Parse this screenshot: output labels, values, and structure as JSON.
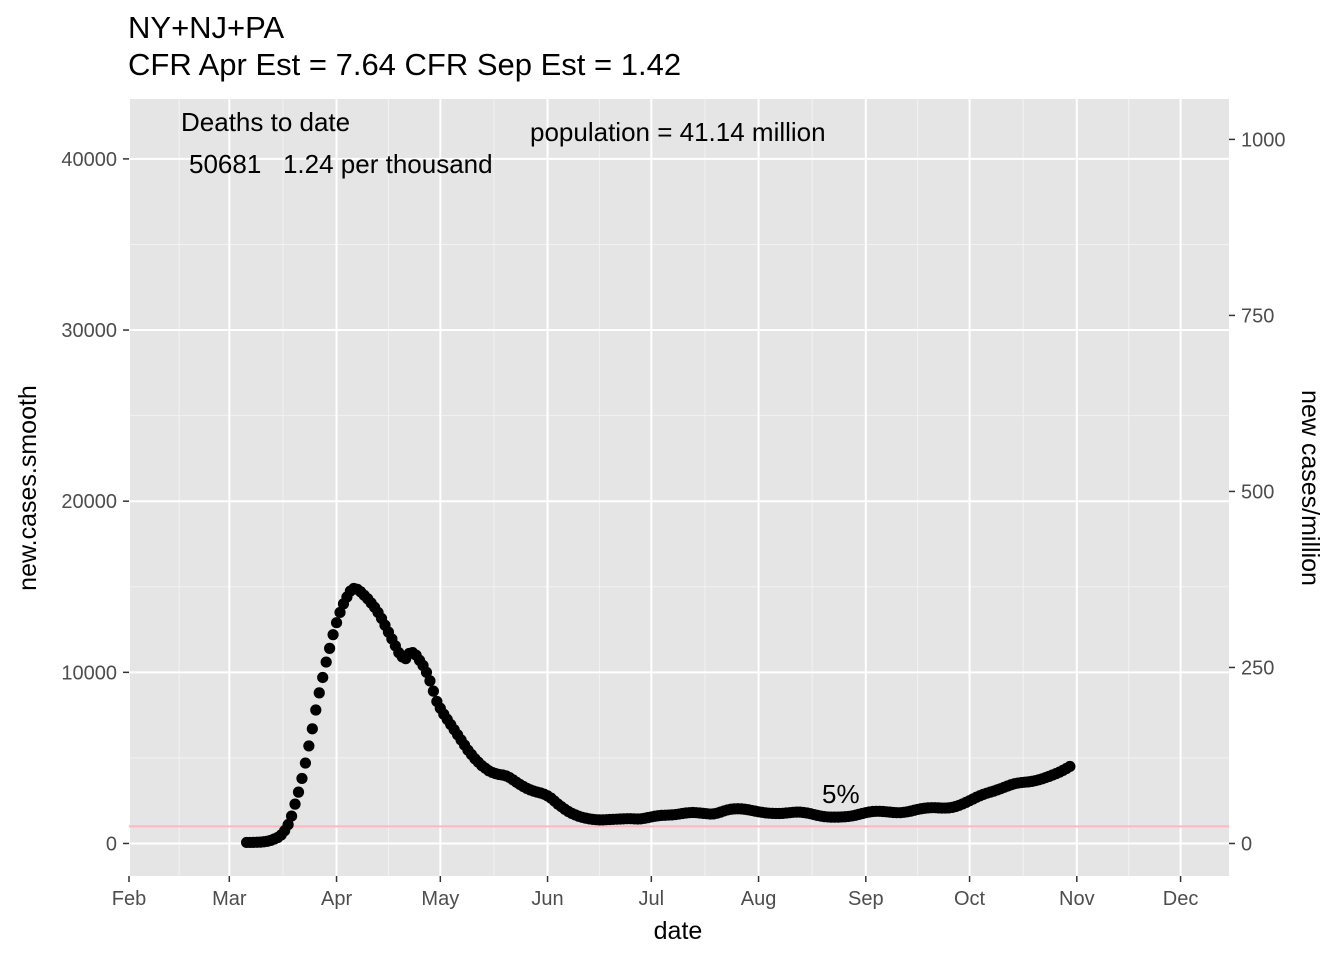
{
  "title": "NY+NJ+PA",
  "subtitle": "CFR Apr Est = 7.64   CFR Sep Est = 1.42",
  "chart_data": {
    "type": "scatter",
    "xlabel": "date",
    "ylabel": "new.cases.smooth",
    "y2label": "new cases/million",
    "x_ticks": [
      "Feb",
      "Mar",
      "Apr",
      "May",
      "Jun",
      "Jul",
      "Aug",
      "Sep",
      "Oct",
      "Nov",
      "Dec"
    ],
    "x_tick_dates": [
      "2020-02-01",
      "2020-03-01",
      "2020-04-01",
      "2020-05-01",
      "2020-06-01",
      "2020-07-01",
      "2020-08-01",
      "2020-09-01",
      "2020-10-01",
      "2020-11-01",
      "2020-12-01"
    ],
    "xlim": [
      "2020-02-01",
      "2020-12-15"
    ],
    "y_ticks": [
      "0",
      "10000",
      "20000",
      "30000",
      "40000"
    ],
    "ylim": [
      -1900,
      43500
    ],
    "y2_ticks": [
      "0",
      "250",
      "500",
      "750",
      "1000"
    ],
    "y2_scale_per_million": 41.14,
    "reference_line": {
      "y": 1000,
      "color": "#ffb6c1"
    },
    "grid": true,
    "background": "#e5e5e5",
    "point_color": "#000000",
    "annotations": {
      "deaths_label": "Deaths to date",
      "deaths_line": "50681   1.24 per thousand",
      "population": "population = 41.14 million",
      "pct_label": "5%"
    },
    "series": [
      {
        "x_start": "2020-03-06",
        "y": [
          60,
          62,
          65,
          70,
          80,
          100,
          130,
          180,
          260,
          350,
          500,
          750,
          1100,
          1600,
          2300,
          3000,
          3800,
          4700,
          5700,
          6700,
          7800,
          8800,
          9700,
          10600,
          11400,
          12200,
          12900,
          13500,
          14000,
          14400,
          14750,
          14900,
          14850,
          14700,
          14500,
          14300,
          14050,
          13800,
          13500,
          13150,
          12750,
          12350,
          11950,
          11550,
          11150,
          10900,
          10800,
          11100,
          11150,
          11000,
          10700,
          10400,
          10000,
          9500,
          8900,
          8300,
          7900,
          7550,
          7250,
          6950,
          6650,
          6350,
          6050,
          5750,
          5450,
          5200,
          4950,
          4750,
          4550,
          4400,
          4250,
          4150,
          4080,
          4030,
          4000,
          3950,
          3850,
          3720,
          3580,
          3450,
          3330,
          3220,
          3130,
          3060,
          3000,
          2950,
          2880,
          2780,
          2650,
          2480,
          2300,
          2150,
          2000,
          1870,
          1760,
          1670,
          1590,
          1530,
          1480,
          1440,
          1410,
          1390,
          1380,
          1380,
          1390,
          1400,
          1410,
          1420,
          1430,
          1440,
          1450,
          1450,
          1440,
          1430,
          1440,
          1470,
          1510,
          1550,
          1590,
          1620,
          1640,
          1650,
          1660,
          1670,
          1690,
          1720,
          1750,
          1780,
          1800,
          1810,
          1800,
          1780,
          1760,
          1740,
          1720,
          1730,
          1770,
          1830,
          1900,
          1960,
          2000,
          2020,
          2030,
          2020,
          2000,
          1970,
          1930,
          1890,
          1850,
          1820,
          1790,
          1770,
          1760,
          1750,
          1750,
          1760,
          1780,
          1800,
          1820,
          1830,
          1830,
          1810,
          1780,
          1740,
          1690,
          1640,
          1600,
          1570,
          1550,
          1540,
          1540,
          1540,
          1550,
          1560,
          1580,
          1610,
          1650,
          1700,
          1750,
          1800,
          1840,
          1870,
          1880,
          1880,
          1870,
          1850,
          1830,
          1810,
          1800,
          1800,
          1820,
          1850,
          1890,
          1940,
          1990,
          2030,
          2060,
          2080,
          2090,
          2090,
          2080,
          2070,
          2070,
          2080,
          2110,
          2160,
          2230,
          2310,
          2400,
          2500,
          2600,
          2700,
          2790,
          2870,
          2940,
          3000,
          3060,
          3130,
          3200,
          3280,
          3360,
          3430,
          3490,
          3530,
          3560,
          3580,
          3600,
          3630,
          3670,
          3720,
          3780,
          3850,
          3920,
          4000,
          4080,
          4170,
          4270,
          4380,
          4500
        ]
      }
    ]
  }
}
